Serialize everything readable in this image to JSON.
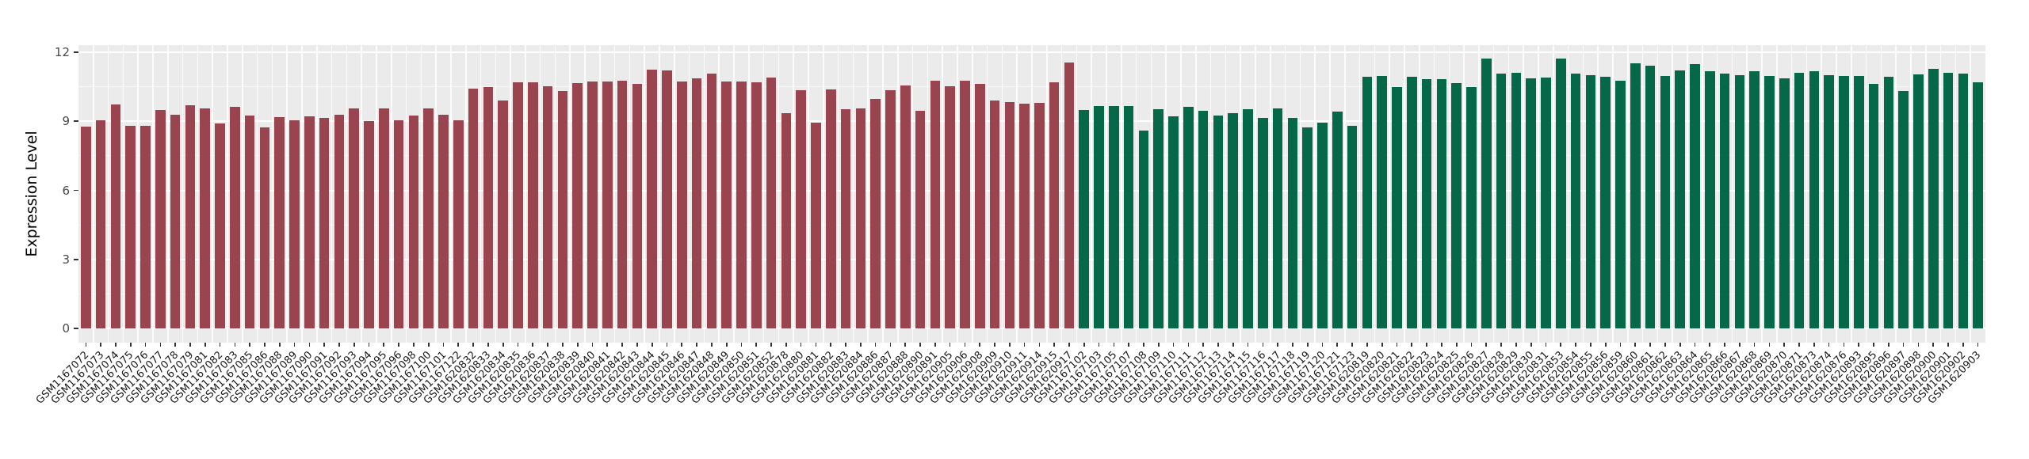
{
  "chart_data": {
    "type": "bar",
    "title": "",
    "xlabel": "",
    "ylabel": "Expression Level",
    "ylim": [
      0,
      12.3
    ],
    "yticks": [
      0,
      3,
      6,
      9,
      12
    ],
    "grid": "white gridlines on light-gray panel (ggplot style)",
    "legend_position": "none",
    "group_colors": {
      "maroon": "#9A4450",
      "green": "#056849"
    },
    "bars": [
      {
        "label": "GSM1167072",
        "value": 8.76,
        "group": "maroon"
      },
      {
        "label": "GSM1167073",
        "value": 9.06,
        "group": "maroon"
      },
      {
        "label": "GSM1167074",
        "value": 9.73,
        "group": "maroon"
      },
      {
        "label": "GSM1167075",
        "value": 8.79,
        "group": "maroon"
      },
      {
        "label": "GSM1167076",
        "value": 8.79,
        "group": "maroon"
      },
      {
        "label": "GSM1167077",
        "value": 9.48,
        "group": "maroon"
      },
      {
        "label": "GSM1167078",
        "value": 9.3,
        "group": "maroon"
      },
      {
        "label": "GSM1167079",
        "value": 9.7,
        "group": "maroon"
      },
      {
        "label": "GSM1167081",
        "value": 9.56,
        "group": "maroon"
      },
      {
        "label": "GSM1167082",
        "value": 8.91,
        "group": "maroon"
      },
      {
        "label": "GSM1167083",
        "value": 9.62,
        "group": "maroon"
      },
      {
        "label": "GSM1167085",
        "value": 9.25,
        "group": "maroon"
      },
      {
        "label": "GSM1167086",
        "value": 8.74,
        "group": "maroon"
      },
      {
        "label": "GSM1167088",
        "value": 9.18,
        "group": "maroon"
      },
      {
        "label": "GSM1167089",
        "value": 9.06,
        "group": "maroon"
      },
      {
        "label": "GSM1167090",
        "value": 9.23,
        "group": "maroon"
      },
      {
        "label": "GSM1167091",
        "value": 9.14,
        "group": "maroon"
      },
      {
        "label": "GSM1167092",
        "value": 9.3,
        "group": "maroon"
      },
      {
        "label": "GSM1167093",
        "value": 9.55,
        "group": "maroon"
      },
      {
        "label": "GSM1167094",
        "value": 9.02,
        "group": "maroon"
      },
      {
        "label": "GSM1167095",
        "value": 9.57,
        "group": "maroon"
      },
      {
        "label": "GSM1167096",
        "value": 9.03,
        "group": "maroon"
      },
      {
        "label": "GSM1167098",
        "value": 9.24,
        "group": "maroon"
      },
      {
        "label": "GSM1167100",
        "value": 9.56,
        "group": "maroon"
      },
      {
        "label": "GSM1167101",
        "value": 9.29,
        "group": "maroon"
      },
      {
        "label": "GSM1167122",
        "value": 9.06,
        "group": "maroon"
      },
      {
        "label": "GSM1620832",
        "value": 10.42,
        "group": "maroon"
      },
      {
        "label": "GSM1620833",
        "value": 10.48,
        "group": "maroon"
      },
      {
        "label": "GSM1620834",
        "value": 9.91,
        "group": "maroon"
      },
      {
        "label": "GSM1620835",
        "value": 10.7,
        "group": "maroon"
      },
      {
        "label": "GSM1620836",
        "value": 10.7,
        "group": "maroon"
      },
      {
        "label": "GSM1620837",
        "value": 10.53,
        "group": "maroon"
      },
      {
        "label": "GSM1620838",
        "value": 10.32,
        "group": "maroon"
      },
      {
        "label": "GSM1620839",
        "value": 10.67,
        "group": "maroon"
      },
      {
        "label": "GSM1620840",
        "value": 10.74,
        "group": "maroon"
      },
      {
        "label": "GSM1620841",
        "value": 10.74,
        "group": "maroon"
      },
      {
        "label": "GSM1620842",
        "value": 10.76,
        "group": "maroon"
      },
      {
        "label": "GSM1620843",
        "value": 10.62,
        "group": "maroon"
      },
      {
        "label": "GSM1620844",
        "value": 11.25,
        "group": "maroon"
      },
      {
        "label": "GSM1620845",
        "value": 11.22,
        "group": "maroon"
      },
      {
        "label": "GSM1620846",
        "value": 10.73,
        "group": "maroon"
      },
      {
        "label": "GSM1620847",
        "value": 10.88,
        "group": "maroon"
      },
      {
        "label": "GSM1620848",
        "value": 11.09,
        "group": "maroon"
      },
      {
        "label": "GSM1620849",
        "value": 10.72,
        "group": "maroon"
      },
      {
        "label": "GSM1620850",
        "value": 10.72,
        "group": "maroon"
      },
      {
        "label": "GSM1620851",
        "value": 10.68,
        "group": "maroon"
      },
      {
        "label": "GSM1620852",
        "value": 10.9,
        "group": "maroon"
      },
      {
        "label": "GSM1620878",
        "value": 9.36,
        "group": "maroon"
      },
      {
        "label": "GSM1620880",
        "value": 10.35,
        "group": "maroon"
      },
      {
        "label": "GSM1620881",
        "value": 8.95,
        "group": "maroon"
      },
      {
        "label": "GSM1620882",
        "value": 10.38,
        "group": "maroon"
      },
      {
        "label": "GSM1620883",
        "value": 9.52,
        "group": "maroon"
      },
      {
        "label": "GSM1620884",
        "value": 9.57,
        "group": "maroon"
      },
      {
        "label": "GSM1620886",
        "value": 9.98,
        "group": "maroon"
      },
      {
        "label": "GSM1620887",
        "value": 10.35,
        "group": "maroon"
      },
      {
        "label": "GSM1620888",
        "value": 10.56,
        "group": "maroon"
      },
      {
        "label": "GSM1620890",
        "value": 9.46,
        "group": "maroon"
      },
      {
        "label": "GSM1620891",
        "value": 10.76,
        "group": "maroon"
      },
      {
        "label": "GSM1620905",
        "value": 10.51,
        "group": "maroon"
      },
      {
        "label": "GSM1620906",
        "value": 10.78,
        "group": "maroon"
      },
      {
        "label": "GSM1620908",
        "value": 10.61,
        "group": "maroon"
      },
      {
        "label": "GSM1620909",
        "value": 9.9,
        "group": "maroon"
      },
      {
        "label": "GSM1620910",
        "value": 9.85,
        "group": "maroon"
      },
      {
        "label": "GSM1620911",
        "value": 9.76,
        "group": "maroon"
      },
      {
        "label": "GSM1620914",
        "value": 9.8,
        "group": "maroon"
      },
      {
        "label": "GSM1620915",
        "value": 10.7,
        "group": "maroon"
      },
      {
        "label": "GSM1620917",
        "value": 11.57,
        "group": "maroon"
      },
      {
        "label": "GSM1167102",
        "value": 9.48,
        "group": "green"
      },
      {
        "label": "GSM1167103",
        "value": 9.68,
        "group": "green"
      },
      {
        "label": "GSM1167105",
        "value": 9.65,
        "group": "green"
      },
      {
        "label": "GSM1167107",
        "value": 9.66,
        "group": "green"
      },
      {
        "label": "GSM1167108",
        "value": 8.58,
        "group": "green"
      },
      {
        "label": "GSM1167109",
        "value": 9.51,
        "group": "green"
      },
      {
        "label": "GSM1167110",
        "value": 9.2,
        "group": "green"
      },
      {
        "label": "GSM1167111",
        "value": 9.62,
        "group": "green"
      },
      {
        "label": "GSM1167112",
        "value": 9.47,
        "group": "green"
      },
      {
        "label": "GSM1167113",
        "value": 9.24,
        "group": "green"
      },
      {
        "label": "GSM1167114",
        "value": 9.36,
        "group": "green"
      },
      {
        "label": "GSM1167115",
        "value": 9.51,
        "group": "green"
      },
      {
        "label": "GSM1167116",
        "value": 9.16,
        "group": "green"
      },
      {
        "label": "GSM1167117",
        "value": 9.56,
        "group": "green"
      },
      {
        "label": "GSM1167118",
        "value": 9.13,
        "group": "green"
      },
      {
        "label": "GSM1167119",
        "value": 8.72,
        "group": "green"
      },
      {
        "label": "GSM1167120",
        "value": 8.94,
        "group": "green"
      },
      {
        "label": "GSM1167121",
        "value": 9.41,
        "group": "green"
      },
      {
        "label": "GSM1167123",
        "value": 8.8,
        "group": "green"
      },
      {
        "label": "GSM1620819",
        "value": 10.94,
        "group": "green"
      },
      {
        "label": "GSM1620820",
        "value": 10.98,
        "group": "green"
      },
      {
        "label": "GSM1620821",
        "value": 10.5,
        "group": "green"
      },
      {
        "label": "GSM1620822",
        "value": 10.93,
        "group": "green"
      },
      {
        "label": "GSM1620823",
        "value": 10.82,
        "group": "green"
      },
      {
        "label": "GSM1620824",
        "value": 10.82,
        "group": "green"
      },
      {
        "label": "GSM1620825",
        "value": 10.65,
        "group": "green"
      },
      {
        "label": "GSM1620826",
        "value": 10.48,
        "group": "green"
      },
      {
        "label": "GSM1620827",
        "value": 11.71,
        "group": "green"
      },
      {
        "label": "GSM1620828",
        "value": 11.09,
        "group": "green"
      },
      {
        "label": "GSM1620829",
        "value": 11.11,
        "group": "green"
      },
      {
        "label": "GSM1620830",
        "value": 10.86,
        "group": "green"
      },
      {
        "label": "GSM1620831",
        "value": 10.9,
        "group": "green"
      },
      {
        "label": "GSM1620853",
        "value": 11.71,
        "group": "green"
      },
      {
        "label": "GSM1620854",
        "value": 11.09,
        "group": "green"
      },
      {
        "label": "GSM1620855",
        "value": 11.0,
        "group": "green"
      },
      {
        "label": "GSM1620856",
        "value": 10.93,
        "group": "green"
      },
      {
        "label": "GSM1620859",
        "value": 10.78,
        "group": "green"
      },
      {
        "label": "GSM1620860",
        "value": 11.51,
        "group": "green"
      },
      {
        "label": "GSM1620861",
        "value": 11.4,
        "group": "green"
      },
      {
        "label": "GSM1620862",
        "value": 10.97,
        "group": "green"
      },
      {
        "label": "GSM1620863",
        "value": 11.22,
        "group": "green"
      },
      {
        "label": "GSM1620864",
        "value": 11.48,
        "group": "green"
      },
      {
        "label": "GSM1620865",
        "value": 11.17,
        "group": "green"
      },
      {
        "label": "GSM1620866",
        "value": 11.08,
        "group": "green"
      },
      {
        "label": "GSM1620867",
        "value": 11.0,
        "group": "green"
      },
      {
        "label": "GSM1620868",
        "value": 11.19,
        "group": "green"
      },
      {
        "label": "GSM1620869",
        "value": 10.96,
        "group": "green"
      },
      {
        "label": "GSM1620870",
        "value": 10.85,
        "group": "green"
      },
      {
        "label": "GSM1620871",
        "value": 11.12,
        "group": "green"
      },
      {
        "label": "GSM1620873",
        "value": 11.17,
        "group": "green"
      },
      {
        "label": "GSM1620874",
        "value": 11.0,
        "group": "green"
      },
      {
        "label": "GSM1620876",
        "value": 10.96,
        "group": "green"
      },
      {
        "label": "GSM1620893",
        "value": 10.96,
        "group": "green"
      },
      {
        "label": "GSM1620895",
        "value": 10.61,
        "group": "green"
      },
      {
        "label": "GSM1620896",
        "value": 10.93,
        "group": "green"
      },
      {
        "label": "GSM1620897",
        "value": 10.32,
        "group": "green"
      },
      {
        "label": "GSM1620898",
        "value": 11.03,
        "group": "green"
      },
      {
        "label": "GSM1620900",
        "value": 11.27,
        "group": "green"
      },
      {
        "label": "GSM1620901",
        "value": 11.12,
        "group": "green"
      },
      {
        "label": "GSM1620902",
        "value": 11.06,
        "group": "green"
      },
      {
        "label": "GSM1620903",
        "value": 10.7,
        "group": "green"
      }
    ]
  },
  "colors": {
    "panel_background": "#EBEBEB",
    "gridline": "#FFFFFF",
    "tick_mark": "#333333",
    "axis_text": "#4A4A4A",
    "x_label_text": "#1A1A1A"
  }
}
